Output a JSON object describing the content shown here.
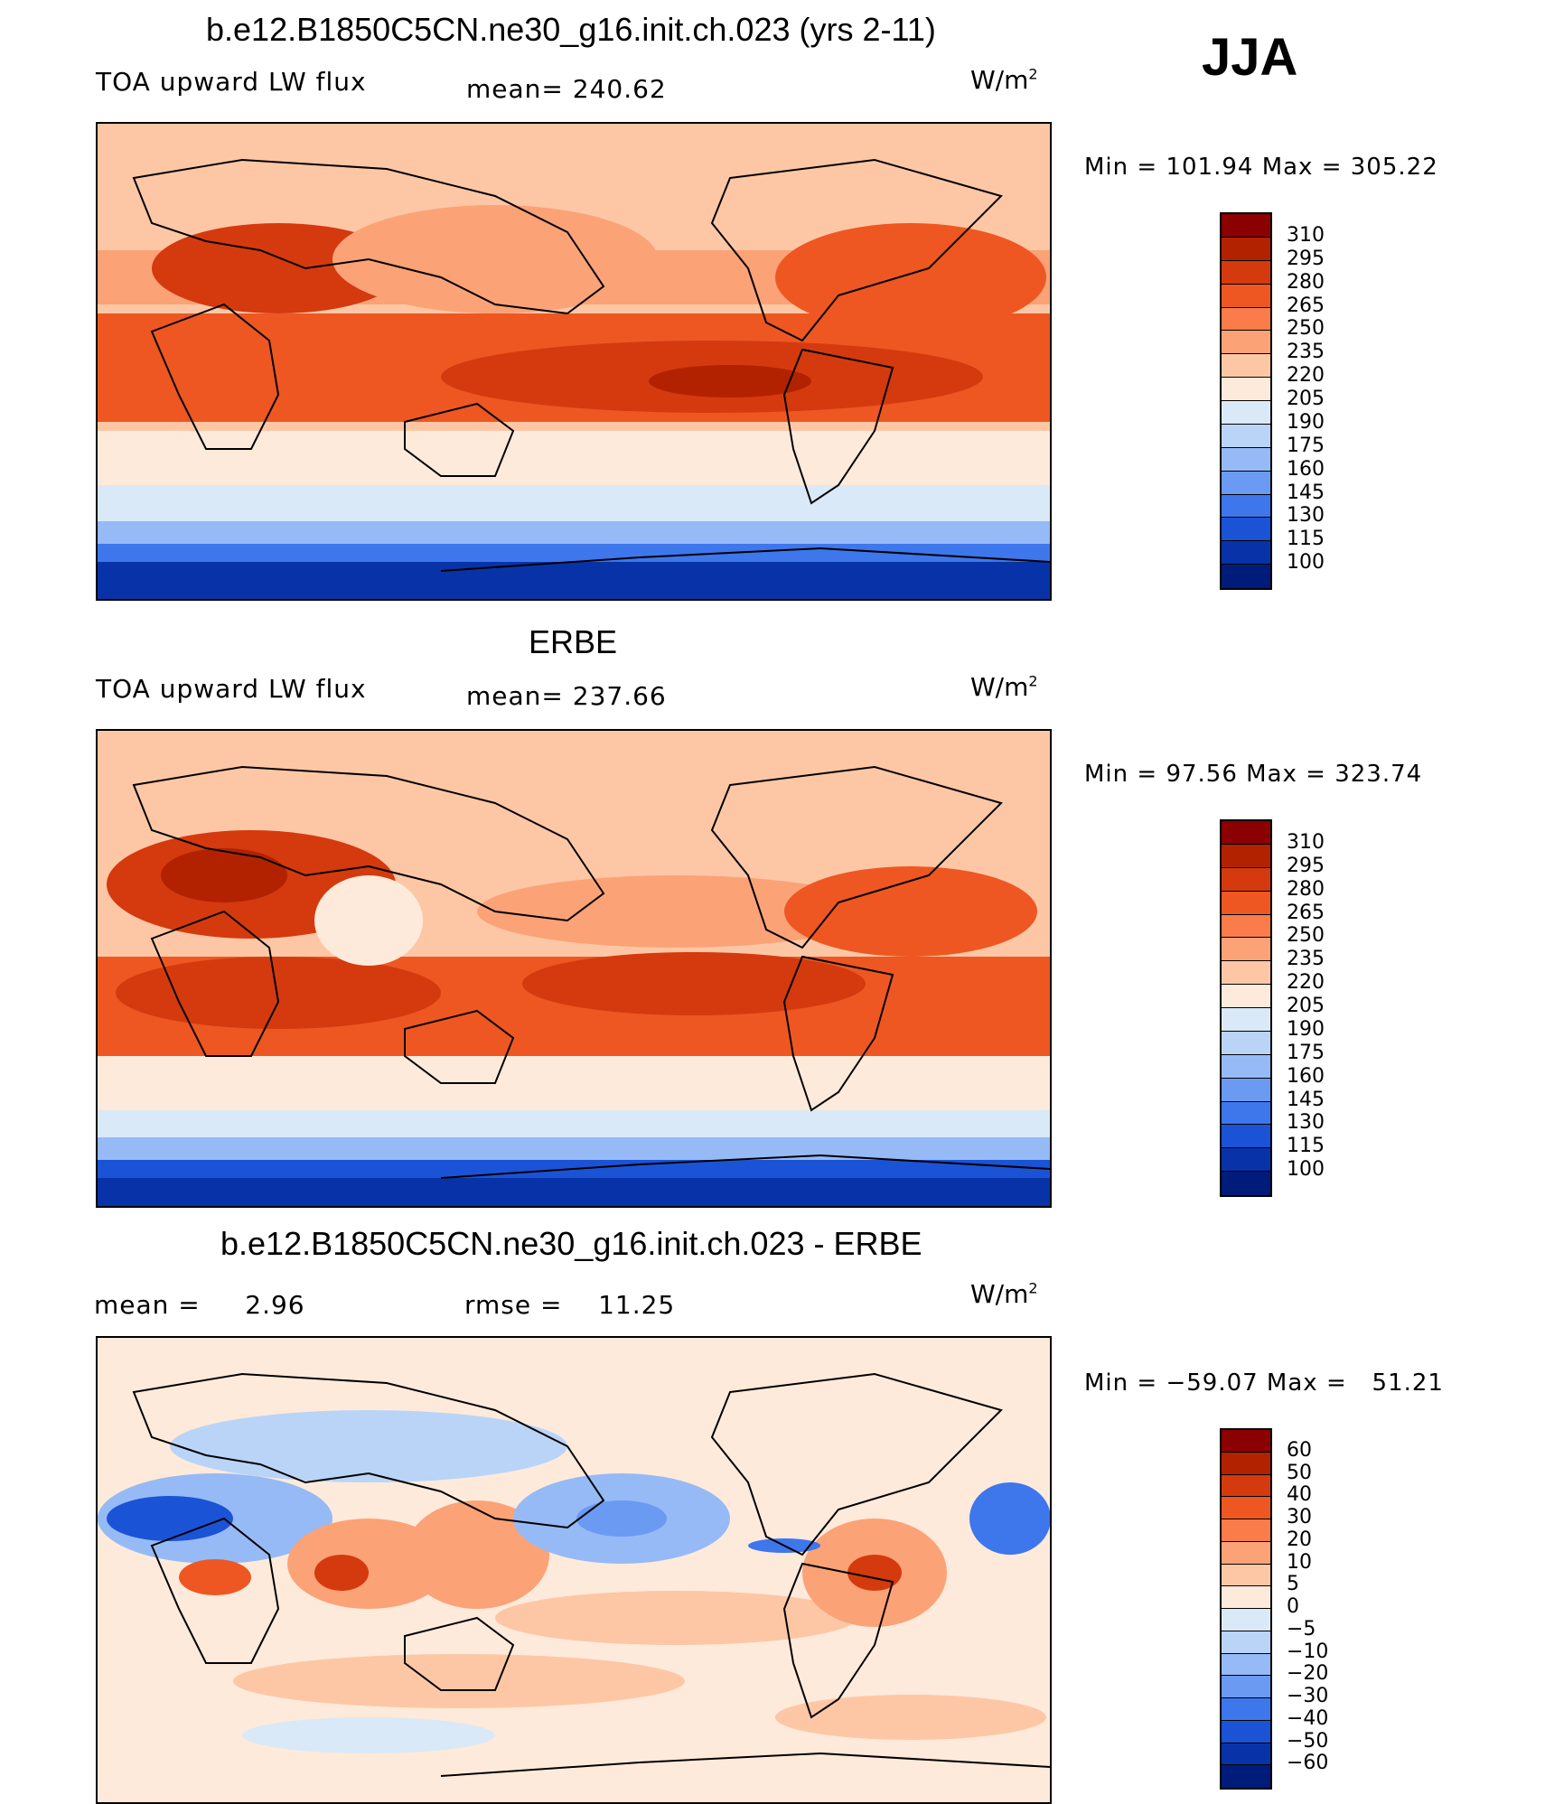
{
  "season": "JJA",
  "panels": [
    {
      "title": "b.e12.B1850C5CN.ne30_g16.init.ch.023 (yrs 2-11)",
      "left_label": "TOA upward LW flux",
      "stat_label": "mean= 240.62",
      "unit": "W/m",
      "unit_sup": "2",
      "minmax": "Min = 101.94 Max = 305.22",
      "colorbar": {
        "labels": [
          "310",
          "295",
          "280",
          "265",
          "250",
          "235",
          "220",
          "205",
          "190",
          "175",
          "160",
          "145",
          "130",
          "115",
          "100"
        ],
        "colors": [
          "#8b0000",
          "#b22200",
          "#d43a0e",
          "#ee5722",
          "#f97c4a",
          "#fca277",
          "#fdc7a6",
          "#feeadb",
          "#d9e9f8",
          "#b9d4f6",
          "#96baf5",
          "#6a9af2",
          "#3e76ec",
          "#1b53d6",
          "#0833a8",
          "#001c7a"
        ]
      }
    },
    {
      "title": "ERBE",
      "left_label": "TOA upward LW flux",
      "stat_label": "mean= 237.66",
      "unit": "W/m",
      "unit_sup": "2",
      "minmax": "Min =  97.56 Max = 323.74",
      "colorbar": {
        "labels": [
          "310",
          "295",
          "280",
          "265",
          "250",
          "235",
          "220",
          "205",
          "190",
          "175",
          "160",
          "145",
          "130",
          "115",
          "100"
        ],
        "colors": [
          "#8b0000",
          "#b22200",
          "#d43a0e",
          "#ee5722",
          "#f97c4a",
          "#fca277",
          "#fdc7a6",
          "#feeadb",
          "#d9e9f8",
          "#b9d4f6",
          "#96baf5",
          "#6a9af2",
          "#3e76ec",
          "#1b53d6",
          "#0833a8",
          "#001c7a"
        ]
      }
    },
    {
      "title": "b.e12.B1850C5CN.ne30_g16.init.ch.023 - ERBE",
      "left_label": "mean =     2.96",
      "stat_label": "rmse =    11.25",
      "unit": "W/m",
      "unit_sup": "2",
      "minmax": "Min = −59.07 Max =   51.21",
      "colorbar": {
        "labels": [
          "60",
          "50",
          "40",
          "30",
          "20",
          "10",
          "5",
          "0",
          "−5",
          "−10",
          "−20",
          "−30",
          "−40",
          "−50",
          "−60"
        ],
        "colors": [
          "#8b0000",
          "#b22200",
          "#d43a0e",
          "#ee5722",
          "#f97c4a",
          "#fca277",
          "#fdc7a6",
          "#feeadb",
          "#d9e9f8",
          "#b9d4f6",
          "#96baf5",
          "#6a9af2",
          "#3e76ec",
          "#1b53d6",
          "#0833a8",
          "#001c7a"
        ]
      }
    }
  ]
}
